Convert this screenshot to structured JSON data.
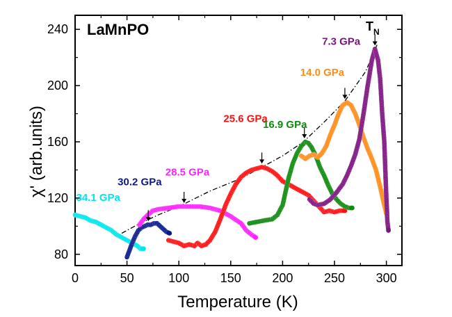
{
  "chart_data": {
    "type": "scatter",
    "panel_label": "LaMnPO",
    "tn_label": {
      "main": "T",
      "sub": "N"
    },
    "xlabel": "Temperature (K)",
    "ylabel": "χ' (arb.units)",
    "xlim": [
      0,
      315
    ],
    "ylim": [
      72,
      250
    ],
    "xticks": [
      0,
      50,
      100,
      150,
      200,
      250,
      300
    ],
    "yticks": [
      80,
      120,
      160,
      200,
      240
    ],
    "xtick_labels": [
      "0",
      "50",
      "100",
      "150",
      "200",
      "250",
      "300"
    ],
    "ytick_labels": [
      "80",
      "120",
      "160",
      "200",
      "240"
    ],
    "series": [
      {
        "name": "34.1 GPa",
        "color": "#00e5ee",
        "label_pos": [
          1,
          118
        ],
        "points": [
          [
            0,
            108
          ],
          [
            5,
            107
          ],
          [
            10,
            106
          ],
          [
            15,
            104
          ],
          [
            20,
            103
          ],
          [
            25,
            101
          ],
          [
            30,
            99
          ],
          [
            35,
            97
          ],
          [
            40,
            94
          ],
          [
            45,
            92
          ],
          [
            50,
            90
          ],
          [
            55,
            88
          ],
          [
            60,
            86
          ],
          [
            63,
            84
          ],
          [
            66,
            84
          ]
        ]
      },
      {
        "name": "30.2 GPa",
        "color": "#0a1a8c",
        "label_pos": [
          41,
          129
        ],
        "points": [
          [
            50,
            78
          ],
          [
            52,
            82
          ],
          [
            55,
            88
          ],
          [
            58,
            93
          ],
          [
            61,
            97
          ],
          [
            64,
            99
          ],
          [
            67,
            100
          ],
          [
            70,
            101
          ],
          [
            73,
            101
          ],
          [
            76,
            102
          ],
          [
            79,
            102
          ],
          [
            82,
            100
          ],
          [
            85,
            98
          ],
          [
            88,
            96
          ],
          [
            91,
            95
          ]
        ]
      },
      {
        "name": "28.5 GPa",
        "color": "#ff22ff",
        "label_pos": [
          87,
          136
        ],
        "points": [
          [
            62,
            101
          ],
          [
            66,
            105
          ],
          [
            70,
            108
          ],
          [
            75,
            111
          ],
          [
            80,
            112
          ],
          [
            90,
            113
          ],
          [
            100,
            114
          ],
          [
            110,
            114
          ],
          [
            120,
            114
          ],
          [
            130,
            113
          ],
          [
            140,
            111
          ],
          [
            150,
            107
          ],
          [
            160,
            102
          ],
          [
            165,
            97
          ],
          [
            170,
            94
          ],
          [
            174,
            92
          ]
        ]
      },
      {
        "name": "25.6 GPa",
        "color": "#ff1010",
        "label_pos": [
          143,
          174
        ],
        "points": [
          [
            90,
            90
          ],
          [
            95,
            89
          ],
          [
            100,
            88
          ],
          [
            105,
            86
          ],
          [
            110,
            87
          ],
          [
            115,
            86
          ],
          [
            118,
            88
          ],
          [
            122,
            86
          ],
          [
            126,
            87
          ],
          [
            130,
            90
          ],
          [
            135,
            96
          ],
          [
            140,
            105
          ],
          [
            145,
            115
          ],
          [
            150,
            123
          ],
          [
            155,
            130
          ],
          [
            160,
            135
          ],
          [
            165,
            138
          ],
          [
            170,
            140
          ],
          [
            175,
            141
          ],
          [
            180,
            142
          ],
          [
            185,
            141
          ],
          [
            190,
            139
          ],
          [
            195,
            136
          ],
          [
            200,
            132
          ],
          [
            205,
            130
          ],
          [
            210,
            128
          ],
          [
            215,
            126
          ],
          [
            220,
            124
          ],
          [
            225,
            122
          ],
          [
            230,
            118
          ],
          [
            235,
            114
          ],
          [
            240,
            110
          ],
          [
            245,
            111
          ],
          [
            250,
            110
          ],
          [
            255,
            111
          ],
          [
            260,
            111
          ]
        ]
      },
      {
        "name": "16.9 GPa",
        "color": "#0f8a0f",
        "label_pos": [
          181,
          170
        ],
        "points": [
          [
            168,
            102
          ],
          [
            175,
            103
          ],
          [
            182,
            104
          ],
          [
            190,
            105
          ],
          [
            195,
            108
          ],
          [
            200,
            115
          ],
          [
            203,
            125
          ],
          [
            206,
            135
          ],
          [
            210,
            145
          ],
          [
            214,
            152
          ],
          [
            218,
            157
          ],
          [
            222,
            160
          ],
          [
            225,
            159
          ],
          [
            228,
            156
          ],
          [
            232,
            150
          ],
          [
            236,
            142
          ],
          [
            240,
            136
          ],
          [
            244,
            129
          ],
          [
            248,
            123
          ],
          [
            252,
            119
          ],
          [
            256,
            116
          ],
          [
            260,
            114
          ],
          [
            264,
            113
          ],
          [
            267,
            113
          ]
        ]
      },
      {
        "name": "14.0 GPa",
        "color": "#ff8c1a",
        "label_pos": [
          217,
          207
        ],
        "points": [
          [
            218,
            150
          ],
          [
            222,
            148
          ],
          [
            226,
            150
          ],
          [
            230,
            151
          ],
          [
            234,
            149
          ],
          [
            238,
            152
          ],
          [
            242,
            157
          ],
          [
            246,
            165
          ],
          [
            250,
            172
          ],
          [
            254,
            180
          ],
          [
            258,
            186
          ],
          [
            262,
            188
          ],
          [
            266,
            186
          ],
          [
            270,
            180
          ],
          [
            274,
            172
          ],
          [
            278,
            163
          ],
          [
            282,
            155
          ],
          [
            286,
            148
          ],
          [
            290,
            140
          ],
          [
            294,
            128
          ],
          [
            297,
            118
          ],
          [
            300,
            109
          ]
        ]
      },
      {
        "name": "7.3 GPa",
        "color": "#7d1580",
        "label_pos": [
          238,
          229
        ],
        "points": [
          [
            226,
            119
          ],
          [
            230,
            116
          ],
          [
            234,
            115
          ],
          [
            240,
            116
          ],
          [
            246,
            119
          ],
          [
            252,
            124
          ],
          [
            258,
            130
          ],
          [
            262,
            136
          ],
          [
            266,
            143
          ],
          [
            270,
            151
          ],
          [
            274,
            162
          ],
          [
            278,
            180
          ],
          [
            282,
            200
          ],
          [
            286,
            218
          ],
          [
            289,
            226
          ],
          [
            292,
            218
          ],
          [
            294,
            205
          ],
          [
            296,
            180
          ],
          [
            298,
            160
          ],
          [
            299,
            140
          ],
          [
            300,
            120
          ],
          [
            301,
            103
          ],
          [
            302,
            97
          ]
        ]
      }
    ],
    "arrows_tn": [
      {
        "x": 70.5,
        "y": 101
      },
      {
        "x": 105,
        "y": 114
      },
      {
        "x": 180,
        "y": 142
      },
      {
        "x": 221,
        "y": 160
      },
      {
        "x": 260,
        "y": 188
      },
      {
        "x": 289,
        "y": 226
      }
    ],
    "envelope_curve": [
      [
        45,
        95
      ],
      [
        60,
        101
      ],
      [
        80,
        108
      ],
      [
        100,
        114
      ],
      [
        130,
        125
      ],
      [
        160,
        134
      ],
      [
        180,
        142
      ],
      [
        200,
        150
      ],
      [
        220,
        160
      ],
      [
        240,
        174
      ],
      [
        260,
        189
      ],
      [
        280,
        210
      ],
      [
        291,
        229
      ]
    ]
  }
}
